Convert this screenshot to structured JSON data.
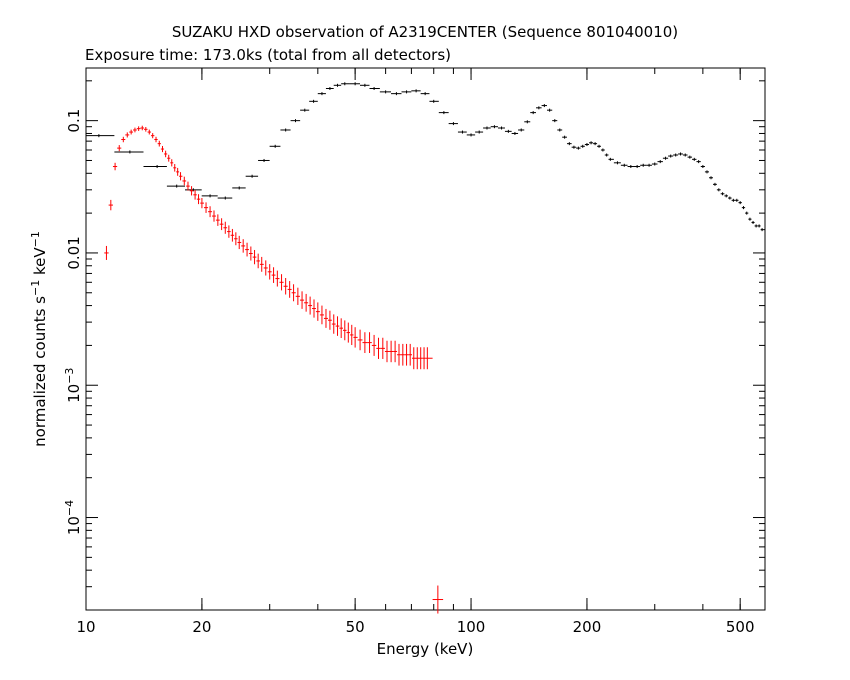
{
  "chart_data": {
    "type": "scatter",
    "title": "SUZAKU HXD observation of A2319CENTER (Sequence 801040010)",
    "subtitle": "Exposure time: 173.0ks (total from all detectors)",
    "xlabel": "Energy (keV)",
    "ylabel": "normalized counts s",
    "ylabel_sup1": "−1",
    "ylabel_unit": " keV",
    "ylabel_sup2": "−1",
    "x_scale": "log",
    "y_scale": "log",
    "xlim": [
      10,
      580
    ],
    "ylim": [
      2e-05,
      0.25
    ],
    "x_ticks": [
      {
        "value": 10,
        "label": "10"
      },
      {
        "value": 20,
        "label": "20"
      },
      {
        "value": 50,
        "label": "50"
      },
      {
        "value": 100,
        "label": "100"
      },
      {
        "value": 200,
        "label": "200"
      },
      {
        "value": 500,
        "label": "500"
      }
    ],
    "y_ticks": [
      {
        "value": 0.1,
        "base": "0.1",
        "exp": ""
      },
      {
        "value": 0.01,
        "base": "0.01",
        "exp": ""
      },
      {
        "value": 0.001,
        "base": "10",
        "exp": "−3"
      },
      {
        "value": 0.0001,
        "base": "10",
        "exp": "−4"
      }
    ],
    "grid": false,
    "series": [
      {
        "color": "#000000",
        "points": [
          [
            10.8,
            0.077
          ],
          [
            13.0,
            0.058
          ],
          [
            15.3,
            0.045
          ],
          [
            17.2,
            0.032
          ],
          [
            19.0,
            0.03
          ],
          [
            21.0,
            0.027
          ],
          [
            23.0,
            0.026
          ],
          [
            25.0,
            0.031
          ],
          [
            27.0,
            0.038
          ],
          [
            29.0,
            0.05
          ],
          [
            31.0,
            0.064
          ],
          [
            33.0,
            0.085
          ],
          [
            35.0,
            0.1
          ],
          [
            37.0,
            0.12
          ],
          [
            39.0,
            0.14
          ],
          [
            41.0,
            0.16
          ],
          [
            43.0,
            0.175
          ],
          [
            45.0,
            0.185
          ],
          [
            47.0,
            0.19
          ],
          [
            50.0,
            0.19
          ],
          [
            53.0,
            0.185
          ],
          [
            56.0,
            0.175
          ],
          [
            60.0,
            0.165
          ],
          [
            64.0,
            0.16
          ],
          [
            68.0,
            0.165
          ],
          [
            72.0,
            0.168
          ],
          [
            76.0,
            0.16
          ],
          [
            80.0,
            0.14
          ],
          [
            85.0,
            0.115
          ],
          [
            90.0,
            0.095
          ],
          [
            95.0,
            0.082
          ],
          [
            100.0,
            0.078
          ],
          [
            105.0,
            0.082
          ],
          [
            110.0,
            0.088
          ],
          [
            115.0,
            0.09
          ],
          [
            120.0,
            0.088
          ],
          [
            125.0,
            0.083
          ],
          [
            130.0,
            0.08
          ],
          [
            135.0,
            0.085
          ],
          [
            140.0,
            0.098
          ],
          [
            145.0,
            0.115
          ],
          [
            150.0,
            0.125
          ],
          [
            155.0,
            0.13
          ],
          [
            160.0,
            0.12
          ],
          [
            165.0,
            0.1
          ],
          [
            170.0,
            0.085
          ],
          [
            175.0,
            0.075
          ],
          [
            180.0,
            0.067
          ],
          [
            185.0,
            0.063
          ],
          [
            190.0,
            0.062
          ],
          [
            195.0,
            0.064
          ],
          [
            200.0,
            0.066
          ],
          [
            205.0,
            0.068
          ],
          [
            210.0,
            0.067
          ],
          [
            215.0,
            0.064
          ],
          [
            220.0,
            0.06
          ],
          [
            225.0,
            0.055
          ],
          [
            230.0,
            0.051
          ],
          [
            240.0,
            0.048
          ],
          [
            250.0,
            0.046
          ],
          [
            260.0,
            0.045
          ],
          [
            270.0,
            0.045
          ],
          [
            280.0,
            0.046
          ],
          [
            290.0,
            0.046
          ],
          [
            300.0,
            0.047
          ],
          [
            310.0,
            0.049
          ],
          [
            320.0,
            0.052
          ],
          [
            330.0,
            0.054
          ],
          [
            340.0,
            0.055
          ],
          [
            350.0,
            0.056
          ],
          [
            360.0,
            0.055
          ],
          [
            370.0,
            0.053
          ],
          [
            380.0,
            0.051
          ],
          [
            390.0,
            0.049
          ],
          [
            400.0,
            0.045
          ],
          [
            410.0,
            0.041
          ],
          [
            420.0,
            0.037
          ],
          [
            430.0,
            0.033
          ],
          [
            440.0,
            0.03
          ],
          [
            450.0,
            0.028
          ],
          [
            460.0,
            0.027
          ],
          [
            470.0,
            0.026
          ],
          [
            480.0,
            0.025
          ],
          [
            490.0,
            0.025
          ],
          [
            500.0,
            0.024
          ],
          [
            510.0,
            0.022
          ],
          [
            520.0,
            0.02
          ],
          [
            530.0,
            0.018
          ],
          [
            540.0,
            0.017
          ],
          [
            550.0,
            0.016
          ],
          [
            560.0,
            0.016
          ],
          [
            570.0,
            0.015
          ],
          [
            580.0,
            0.015
          ]
        ]
      },
      {
        "color": "#ff0000",
        "points": [
          [
            11.3,
            0.01
          ],
          [
            11.6,
            0.023
          ],
          [
            11.9,
            0.045
          ],
          [
            12.2,
            0.062
          ],
          [
            12.5,
            0.072
          ],
          [
            12.8,
            0.078
          ],
          [
            13.1,
            0.082
          ],
          [
            13.4,
            0.085
          ],
          [
            13.7,
            0.087
          ],
          [
            14.0,
            0.088
          ],
          [
            14.3,
            0.086
          ],
          [
            14.6,
            0.082
          ],
          [
            14.9,
            0.077
          ],
          [
            15.2,
            0.072
          ],
          [
            15.5,
            0.067
          ],
          [
            15.8,
            0.061
          ],
          [
            16.1,
            0.056
          ],
          [
            16.4,
            0.052
          ],
          [
            16.7,
            0.048
          ],
          [
            17.0,
            0.044
          ],
          [
            17.3,
            0.041
          ],
          [
            17.6,
            0.038
          ],
          [
            18.0,
            0.035
          ],
          [
            18.4,
            0.032
          ],
          [
            18.8,
            0.0295
          ],
          [
            19.2,
            0.0275
          ],
          [
            19.6,
            0.0255
          ],
          [
            20.0,
            0.0238
          ],
          [
            20.5,
            0.022
          ],
          [
            21.0,
            0.0205
          ],
          [
            21.5,
            0.019
          ],
          [
            22.0,
            0.0177
          ],
          [
            22.5,
            0.0165
          ],
          [
            23.0,
            0.0155
          ],
          [
            23.5,
            0.0145
          ],
          [
            24.0,
            0.0136
          ],
          [
            24.5,
            0.0128
          ],
          [
            25.0,
            0.012
          ],
          [
            25.6,
            0.0113
          ],
          [
            26.2,
            0.0106
          ],
          [
            26.8,
            0.0099
          ],
          [
            27.4,
            0.0093
          ],
          [
            28.0,
            0.0087
          ],
          [
            28.6,
            0.0082
          ],
          [
            29.3,
            0.0077
          ],
          [
            30.0,
            0.0072
          ],
          [
            30.7,
            0.0068
          ],
          [
            31.4,
            0.0064
          ],
          [
            32.2,
            0.006
          ],
          [
            33.0,
            0.0056
          ],
          [
            33.8,
            0.0053
          ],
          [
            34.6,
            0.005
          ],
          [
            35.5,
            0.0047
          ],
          [
            36.4,
            0.0044
          ],
          [
            37.3,
            0.0042
          ],
          [
            38.2,
            0.004
          ],
          [
            39.1,
            0.0038
          ],
          [
            40.0,
            0.0036
          ],
          [
            41.0,
            0.0034
          ],
          [
            42.0,
            0.0032
          ],
          [
            43.0,
            0.0031
          ],
          [
            44.0,
            0.0029
          ],
          [
            45.0,
            0.0028
          ],
          [
            46.0,
            0.0027
          ],
          [
            47.0,
            0.0026
          ],
          [
            48.0,
            0.0025
          ],
          [
            49.0,
            0.0024
          ],
          [
            50.0,
            0.0023
          ],
          [
            51.5,
            0.0022
          ],
          [
            53.0,
            0.0021
          ],
          [
            54.5,
            0.0021
          ],
          [
            56.0,
            0.002
          ],
          [
            57.5,
            0.0019
          ],
          [
            59.0,
            0.0019
          ],
          [
            60.5,
            0.0018
          ],
          [
            62.0,
            0.0018
          ],
          [
            63.5,
            0.0018
          ],
          [
            65.0,
            0.0017
          ],
          [
            66.5,
            0.0017
          ],
          [
            68.0,
            0.0017
          ],
          [
            69.5,
            0.0017
          ],
          [
            71.0,
            0.0016
          ],
          [
            72.5,
            0.0016
          ],
          [
            74.0,
            0.0016
          ],
          [
            75.5,
            0.0016
          ],
          [
            77.0,
            0.0016
          ],
          [
            82.0,
            2.4e-05
          ]
        ]
      }
    ]
  }
}
